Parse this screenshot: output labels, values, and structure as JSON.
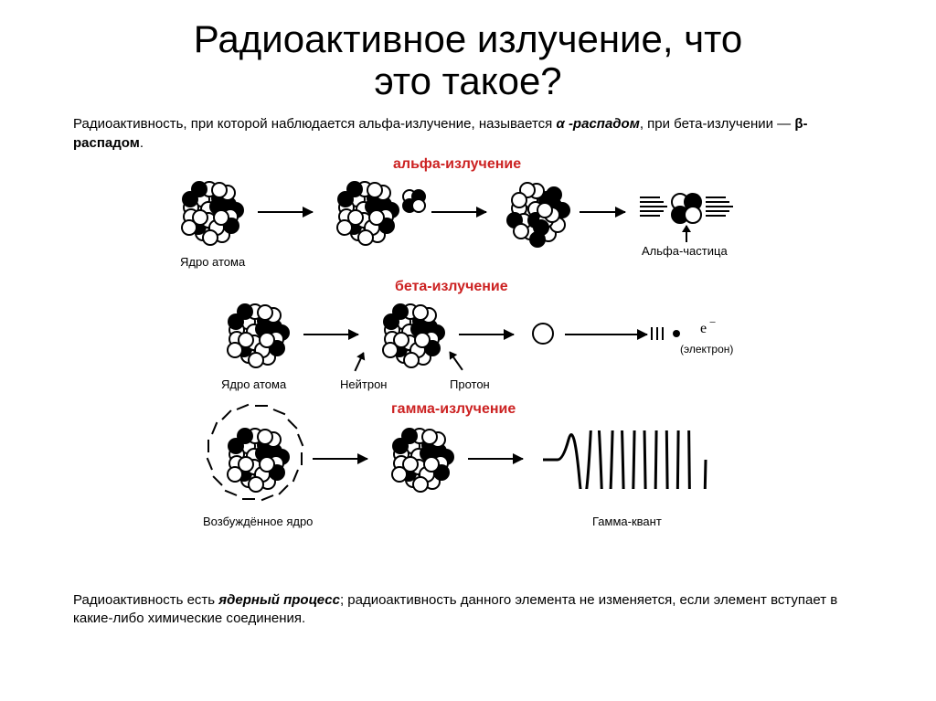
{
  "title_line1": "Радиоактивное излучение, что",
  "title_line2": "это такое?",
  "intro_pre": "Радиоактивность, при которой наблюдается альфа-излучение, называется ",
  "intro_alpha": "α -распадом",
  "intro_mid": ", при бета-излучении — ",
  "intro_beta": "β-распадом",
  "intro_end": ".",
  "sections": {
    "alpha": "альфа-излучение",
    "beta": "бета-излучение",
    "gamma": "гамма-излучение"
  },
  "captions": {
    "nucleus": "Ядро атома",
    "alpha_particle": "Альфа-частица",
    "neutron": "Нейтрон",
    "proton": "Протон",
    "electron": "(электрон)",
    "excited_nucleus": "Возбуждённое ядро",
    "gamma_quantum": "Гамма-квант"
  },
  "electron_symbol": "e",
  "electron_charge": "−",
  "footer_pre": "Радиоактивность есть ",
  "footer_em": "ядерный процесс",
  "footer_post": "; радиоактивность данного элемента не изменяется, если элемент вступает в какие-либо химические соединения.",
  "colors": {
    "title_red": "#cc2222",
    "black": "#000000",
    "white": "#ffffff"
  }
}
